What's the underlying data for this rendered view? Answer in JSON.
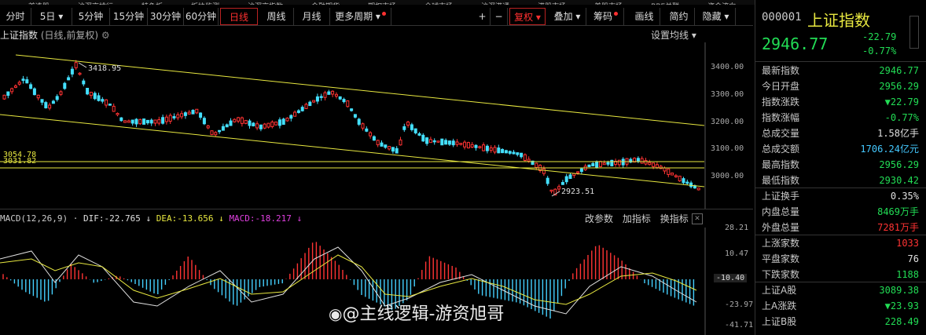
{
  "toolbar": {
    "items": [
      "分时",
      "5日",
      "5分钟",
      "15分钟",
      "30分钟",
      "60分钟",
      "日线",
      "周线",
      "月线",
      "更多周期",
      "+",
      "−",
      "复权",
      "叠加",
      "筹码",
      "画线",
      "简约",
      "隐藏"
    ]
  },
  "chart": {
    "title": "上证指数",
    "subtitle": "(日线,前复权)",
    "set_ma": "设置均线",
    "y_ticks": [
      "3400.00",
      "3300.00",
      "3200.00",
      "3100.00",
      "3000.00"
    ],
    "annotations": {
      "high": "3418.95",
      "low": "2923.51",
      "line1": "3054.78",
      "line2": "3031.82"
    }
  },
  "macd": {
    "label": "MACD(12,26,9)",
    "dif": "DIF:-22.765",
    "dea": "DEA:-13.656",
    "macd": "MACD:-18.217",
    "buttons": [
      "改参数",
      "加指标",
      "换指标"
    ],
    "y_ticks": [
      "28.21",
      "10.47",
      "-10.40",
      "-23.97",
      "-41.71"
    ]
  },
  "quote": {
    "code": "000001",
    "name": "上证指数",
    "price": "2946.77",
    "change": "-22.79",
    "change_pct": "-0.77%",
    "rows1": [
      {
        "k": "最新指数",
        "v": "2946.77"
      },
      {
        "k": "今日开盘",
        "v": "2956.29"
      },
      {
        "k": "指数涨跌",
        "v": "▼22.79"
      },
      {
        "k": "指数涨幅",
        "v": "-0.77%"
      },
      {
        "k": "总成交量",
        "v": "1.58亿手"
      },
      {
        "k": "总成交额",
        "v": "1706.24亿元"
      },
      {
        "k": "最高指数",
        "v": "2956.29"
      },
      {
        "k": "最低指数",
        "v": "2930.42"
      }
    ],
    "rows2": [
      {
        "k": "上证换手",
        "v": "0.35%"
      },
      {
        "k": "内盘总量",
        "v": "8469万手"
      },
      {
        "k": "外盘总量",
        "v": "7281万手"
      }
    ],
    "rows3": [
      {
        "k": "上涨家数",
        "v": "1033"
      },
      {
        "k": "平盘家数",
        "v": "76"
      },
      {
        "k": "下跌家数",
        "v": "1188"
      }
    ],
    "rows4": [
      {
        "k": "上证A股",
        "v": "3089.38"
      },
      {
        "k": "上A涨跌",
        "v": "▼23.93"
      },
      {
        "k": "上证B股",
        "v": "228.49"
      }
    ]
  },
  "watermark": "@主线逻辑-游资旭哥",
  "colors": {
    "up": "#ff3333",
    "down": "#22dd55",
    "line": "#e8e840",
    "cyan": "#44c8ff"
  }
}
